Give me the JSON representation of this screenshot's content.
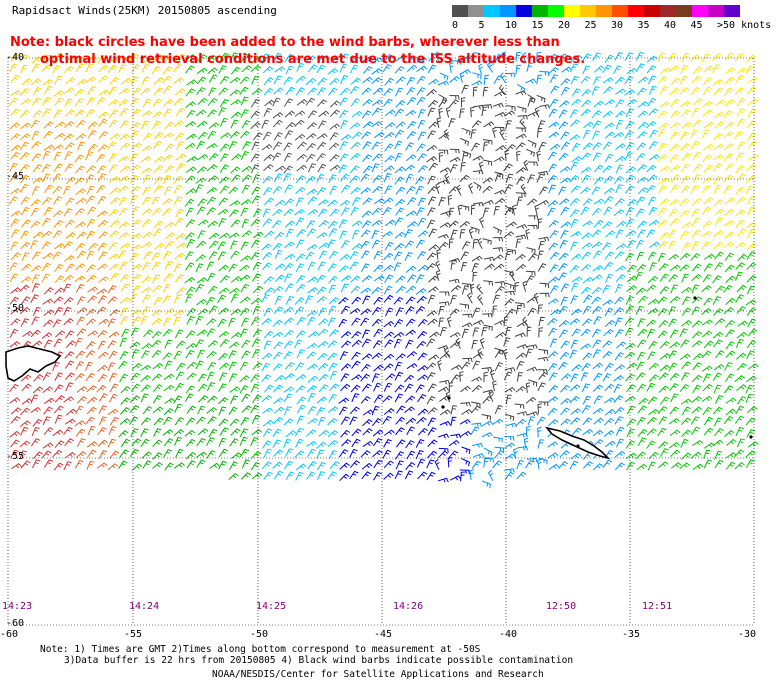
{
  "title": "Rapidsact Winds(25KM) 20150805 ascending",
  "note_line1": "Note: black circles have been added to the wind barbs, wherever less than",
  "note_line2": "optimal wind retrieval conditions are met due to the ISS altitude changes.",
  "scale": {
    "labels": [
      "0",
      "5",
      "10",
      "15",
      "20",
      "25",
      "30",
      "35",
      "40",
      "45",
      ">50 knots"
    ],
    "colors": [
      "#505050",
      "#909090",
      "#00c8ff",
      "#0096ff",
      "#0000e0",
      "#00b400",
      "#00ff00",
      "#ffff00",
      "#ffc800",
      "#ff9600",
      "#ff5000",
      "#ff0000",
      "#c80000",
      "#a02828",
      "#7a3c1e",
      "#ff00ff",
      "#c800c8",
      "#6400c8"
    ]
  },
  "lat_labels": [
    "-40",
    "-45",
    "-50",
    "-55",
    "-60"
  ],
  "lon_labels": [
    "-60",
    "-55",
    "-50",
    "-45",
    "-40",
    "-35",
    "-30"
  ],
  "time_labels": [
    "14:23",
    "14:24",
    "14:25",
    "14:26",
    "12:50",
    "12:51"
  ],
  "footer": {
    "line1": "Note: 1) Times are GMT 2)Times along bottom correspond to measurement at -50S",
    "line2": "3)Data buffer is 22 hrs from 20150805 4) Black wind barbs indicate possible contamination",
    "credit": "NOAA/NESDIS/Center for Satellite Applications and Research"
  },
  "map": {
    "extent": {
      "lon": [
        -60,
        -30
      ],
      "lat": [
        -60,
        -40
      ]
    }
  }
}
